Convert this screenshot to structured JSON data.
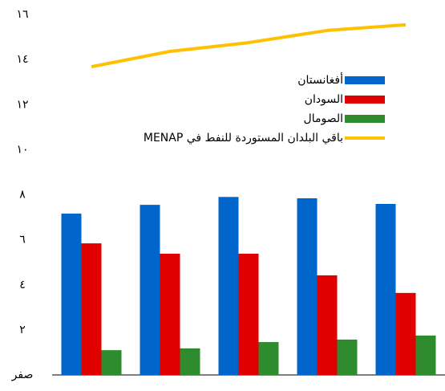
{
  "chart_data": {
    "type": "bar",
    "categories": [
      null,
      null,
      null,
      null,
      null
    ],
    "series": [
      {
        "name": "أفغانستان",
        "color": "#0066cc",
        "values": [
          7.16,
          7.55,
          7.9,
          7.84,
          7.59
        ]
      },
      {
        "name": "السودان",
        "color": "#e00000",
        "values": [
          5.84,
          5.38,
          5.38,
          4.42,
          3.64
        ]
      },
      {
        "name": "الصومال",
        "color": "#2e8b2e",
        "values": [
          1.1,
          1.18,
          1.46,
          1.57,
          1.75
        ]
      },
      {
        "name": "باقي البلدان المستوردة للنفط في MENAP",
        "color": "#ffc000",
        "type": "line",
        "values": [
          13.68,
          14.36,
          14.75,
          15.29,
          15.54
        ]
      }
    ],
    "ylim": [
      0,
      16
    ],
    "yticks": [
      {
        "value": 0,
        "label": "صفر"
      },
      {
        "value": 2,
        "label": "٢"
      },
      {
        "value": 4,
        "label": "٤"
      },
      {
        "value": 6,
        "label": "٦"
      },
      {
        "value": 8,
        "label": "٨"
      },
      {
        "value": 10,
        "label": "١٠"
      },
      {
        "value": 12,
        "label": "١٢"
      },
      {
        "value": 14,
        "label": "١٤"
      },
      {
        "value": 16,
        "label": "١٦"
      }
    ],
    "grid": false,
    "legend": "top-right"
  }
}
